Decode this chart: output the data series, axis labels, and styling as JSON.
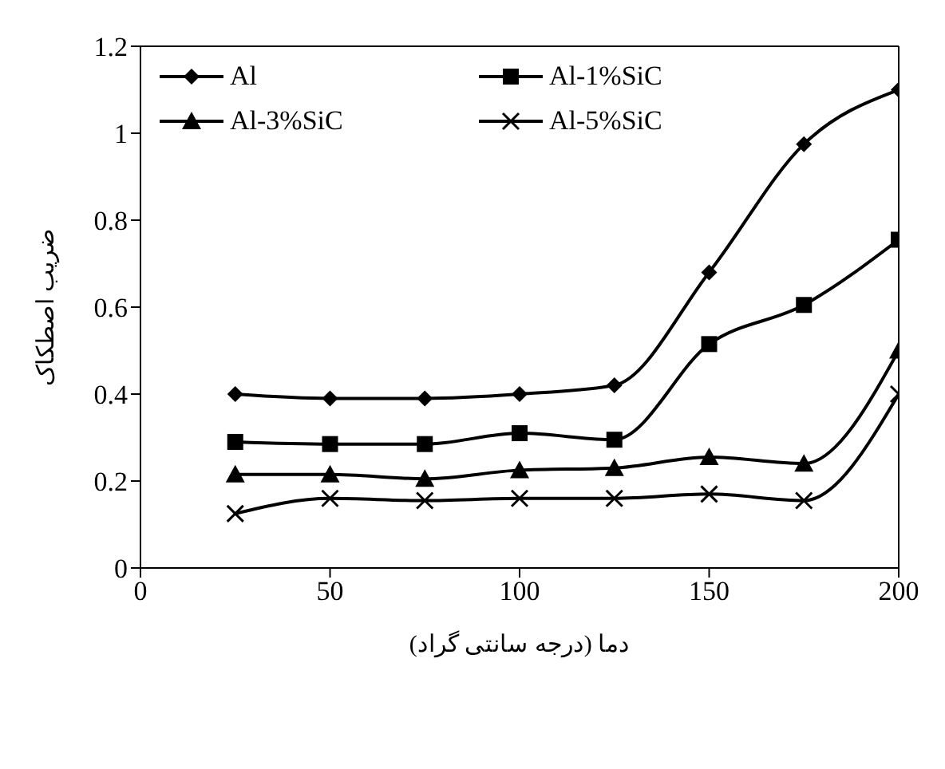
{
  "chart_data": {
    "type": "line",
    "xlabel": "دما (درجه سانتی گراد)",
    "ylabel": "ضریب اصطکاک",
    "x": [
      25,
      50,
      75,
      100,
      125,
      150,
      175,
      200
    ],
    "xlim": [
      0,
      200
    ],
    "xticks": [
      0,
      50,
      100,
      150,
      200
    ],
    "ylim": [
      0,
      1.2
    ],
    "yticks": [
      0,
      0.2,
      0.4,
      0.6,
      0.8,
      1,
      1.2
    ],
    "grid": false,
    "legend": "top left",
    "line_style": "solid",
    "series": [
      {
        "name": "Al",
        "color": "#000000",
        "marker": "diamond",
        "values": [
          0.4,
          0.39,
          0.39,
          0.4,
          0.42,
          0.68,
          0.975,
          1.1
        ]
      },
      {
        "name": "Al-1%SiC",
        "color": "#000000",
        "marker": "square",
        "values": [
          0.29,
          0.285,
          0.285,
          0.31,
          0.295,
          0.515,
          0.605,
          0.755
        ]
      },
      {
        "name": "Al-3%SiC",
        "color": "#000000",
        "marker": "triangle",
        "values": [
          0.215,
          0.215,
          0.205,
          0.225,
          0.23,
          0.255,
          0.24,
          0.5
        ]
      },
      {
        "name": "Al-5%SiC",
        "color": "#000000",
        "marker": "cross",
        "values": [
          0.125,
          0.16,
          0.155,
          0.16,
          0.16,
          0.17,
          0.155,
          0.4
        ]
      }
    ]
  }
}
